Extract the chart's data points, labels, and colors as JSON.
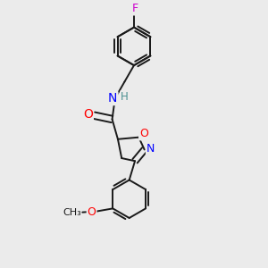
{
  "bg_color": "#ebebeb",
  "bond_color": "#1a1a1a",
  "atom_colors": {
    "N": "#0000ff",
    "O": "#ff0000",
    "F": "#cc00cc",
    "H": "#4a9090",
    "C": "#1a1a1a"
  },
  "font_size": 8.5,
  "line_width": 1.4
}
